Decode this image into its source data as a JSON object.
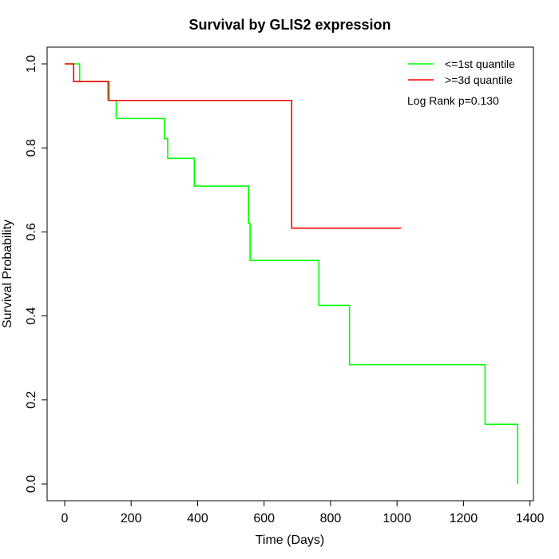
{
  "chart_data": {
    "type": "line",
    "title": "Survival by GLIS2 expression",
    "xlabel": "Time (Days)",
    "ylabel": "Survival Probability",
    "xlim": [
      0,
      1400
    ],
    "ylim": [
      0,
      1.0
    ],
    "x_ticks": [
      0,
      200,
      400,
      600,
      800,
      1000,
      1200,
      1400
    ],
    "y_ticks": [
      0.0,
      0.2,
      0.4,
      0.6,
      0.8,
      1.0
    ],
    "x_tick_labels": [
      "0",
      "200",
      "400",
      "600",
      "800",
      "1000",
      "1200",
      "1400"
    ],
    "y_tick_labels": [
      "0.0",
      "0.2",
      "0.4",
      "0.6",
      "0.8",
      "1.0"
    ],
    "grid": false,
    "legend_position": "top-right",
    "annotation": "Log Rank p=0.130",
    "series": [
      {
        "name": "<=1st quantile",
        "color": "#00ff00",
        "step": true,
        "x": [
          0,
          45,
          130,
          155,
          300,
          310,
          390,
          553,
          558,
          765,
          857,
          1265,
          1363
        ],
        "y": [
          1.0,
          0.958,
          0.913,
          0.87,
          0.822,
          0.775,
          0.709,
          0.62,
          0.532,
          0.425,
          0.284,
          0.142,
          0.0
        ]
      },
      {
        "name": ">=3d quantile",
        "color": "#ff0000",
        "step": true,
        "x": [
          0,
          27,
          133,
          683,
          1012
        ],
        "y": [
          1.0,
          0.958,
          0.913,
          0.609,
          0.609
        ]
      }
    ]
  }
}
